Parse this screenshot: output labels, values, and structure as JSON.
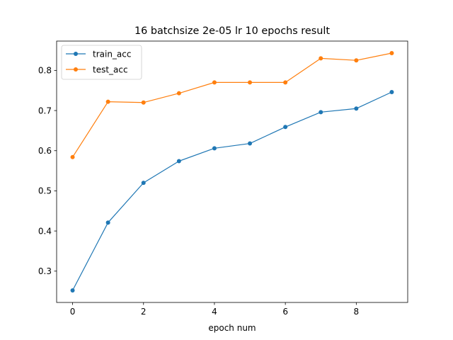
{
  "chart_data": {
    "type": "line",
    "title": "16 batchsize  2e-05 lr 10 epochs result",
    "xlabel": "epoch num",
    "ylabel": "",
    "x": [
      0,
      1,
      2,
      3,
      4,
      5,
      6,
      7,
      8,
      9
    ],
    "xlim": [
      -0.45,
      9.45
    ],
    "ylim": [
      0.222,
      0.873
    ],
    "xticks": [
      0,
      2,
      4,
      6,
      8
    ],
    "yticks": [
      0.3,
      0.4,
      0.5,
      0.6,
      0.7,
      0.8
    ],
    "grid": false,
    "legend_position": "top-left",
    "series": [
      {
        "name": "train_acc",
        "color": "#1f77b4",
        "values": [
          0.252,
          0.421,
          0.52,
          0.574,
          0.606,
          0.618,
          0.659,
          0.696,
          0.705,
          0.746
        ]
      },
      {
        "name": "test_acc",
        "color": "#ff7f0e",
        "values": [
          0.584,
          0.722,
          0.72,
          0.743,
          0.77,
          0.77,
          0.77,
          0.83,
          0.825,
          0.843
        ]
      }
    ]
  }
}
